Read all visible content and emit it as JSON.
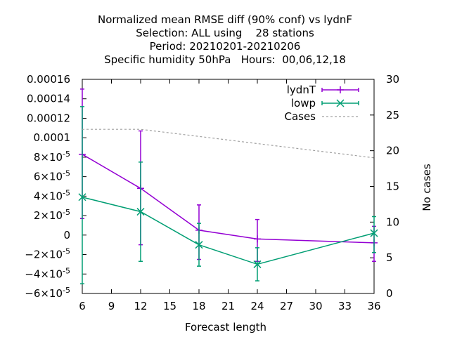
{
  "chart_data": {
    "type": "line",
    "title": [
      "Normalized mean RMSE diff (90% conf) vs lydnF",
      "Selection: ALL using    28 stations",
      "Period: 20210201-20210206",
      "Specific humidity 50hPa   Hours:  00,06,12,18"
    ],
    "xlabel": "Forecast length",
    "ylabel": "",
    "y2label": "No cases",
    "xlim": [
      6,
      36
    ],
    "ylim": [
      -6e-05,
      0.00016
    ],
    "y2lim": [
      0,
      30
    ],
    "xticks": [
      6,
      9,
      12,
      15,
      18,
      21,
      24,
      27,
      30,
      33,
      36
    ],
    "yticks": [
      -6e-05,
      -4e-05,
      -2e-05,
      0,
      2e-05,
      4e-05,
      6e-05,
      8e-05,
      0.0001,
      0.00012,
      0.00014,
      0.00016
    ],
    "ytick_labels": [
      {
        "m": "−6×10",
        "e": "-5"
      },
      {
        "m": "−4×10",
        "e": "-5"
      },
      {
        "m": "−2×10",
        "e": "-5"
      },
      {
        "m": "0",
        "e": ""
      },
      {
        "m": "2×10",
        "e": "-5"
      },
      {
        "m": "4×10",
        "e": "-5"
      },
      {
        "m": "6×10",
        "e": "-5"
      },
      {
        "m": "8×10",
        "e": "-5"
      },
      {
        "m": "0.0001",
        "e": ""
      },
      {
        "m": "0.00012",
        "e": ""
      },
      {
        "m": "0.00014",
        "e": ""
      },
      {
        "m": "0.00016",
        "e": ""
      }
    ],
    "y2ticks": [
      0,
      5,
      10,
      15,
      20,
      25,
      30
    ],
    "legend_position": "top-right",
    "series": [
      {
        "name": "lydnT",
        "color": "#9400d3",
        "marker": "plus",
        "x": [
          6,
          12,
          18,
          24,
          36
        ],
        "y": [
          8.3e-05,
          4.8e-05,
          5e-06,
          -4e-06,
          -8e-06
        ],
        "err_low": [
          1.7e-05,
          -1e-05,
          -2.5e-05,
          -2.7e-05,
          -2.7e-05
        ],
        "err_high": [
          0.00015,
          0.000107,
          3.1e-05,
          1.6e-05,
          9e-06
        ]
      },
      {
        "name": "lowp",
        "color": "#009e73",
        "marker": "x",
        "x": [
          6,
          12,
          18,
          24,
          36
        ],
        "y": [
          3.9e-05,
          2.4e-05,
          -1e-05,
          -3e-05,
          2e-06
        ],
        "err_low": [
          -5e-05,
          -2.7e-05,
          -3.2e-05,
          -4.7e-05,
          -1.8e-05
        ],
        "err_high": [
          0.000132,
          7.5e-05,
          1.2e-05,
          -1.3e-05,
          1.9e-05
        ]
      },
      {
        "name": "Cases",
        "color": "#a0a0a0",
        "style": "dashed",
        "axis": "y2",
        "x": [
          6,
          12,
          18,
          24,
          36
        ],
        "y": [
          23,
          23,
          22,
          21,
          19
        ]
      }
    ]
  }
}
